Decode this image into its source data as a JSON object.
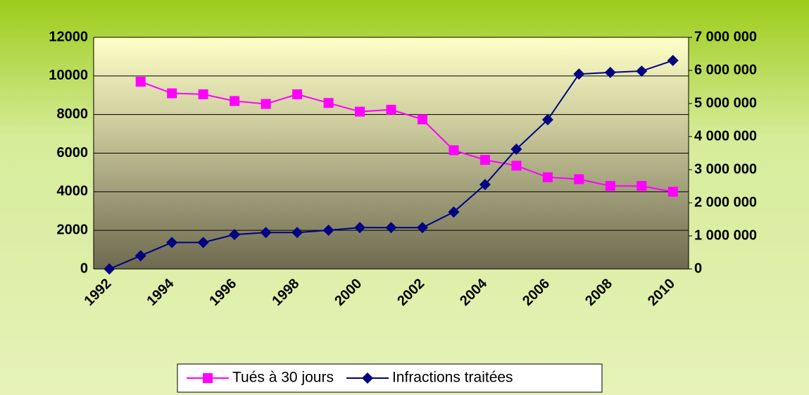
{
  "chart_data": {
    "type": "line",
    "categories": [
      "1992",
      null,
      "1994",
      null,
      "1996",
      null,
      "1998",
      null,
      "2000",
      null,
      "2002",
      null,
      "2004",
      null,
      "2006",
      null,
      "2008",
      null,
      "2010"
    ],
    "series": [
      {
        "name": "Tués à 30 jours",
        "color": "#ff00ff",
        "marker": "square",
        "values": [
          null,
          9700,
          9100,
          9050,
          8700,
          8550,
          9050,
          8600,
          8150,
          8250,
          7750,
          6150,
          5650,
          5350,
          4750,
          4650,
          4300,
          4300,
          4000
        ]
      },
      {
        "name": "Infractions traitées",
        "color": "#000080",
        "marker": "diamond",
        "axis": "y2",
        "values": [
          0,
          400000,
          800000,
          800000,
          1040000,
          1100000,
          1100000,
          1170000,
          1250000,
          1250000,
          1250000,
          1720000,
          2550000,
          3620000,
          4510000,
          5890000,
          5940000,
          5980000,
          6300000
        ]
      }
    ],
    "ylim": [
      0,
      12000
    ],
    "yticks": [
      0,
      2000,
      4000,
      6000,
      8000,
      10000,
      12000
    ],
    "y2lim": [
      0,
      7000000
    ],
    "y2ticks": [
      0,
      {
        "value": 1000000,
        "label": "1 000 000"
      },
      {
        "value": 2000000,
        "label": "2 000 000"
      },
      {
        "value": 3000000,
        "label": "3 000 000"
      },
      {
        "value": 4000000,
        "label": "4 000 000"
      },
      {
        "value": 5000000,
        "label": "5 000 000"
      },
      {
        "value": 6000000,
        "label": "6 000 000"
      },
      {
        "value": 7000000,
        "label": "7 000 000"
      }
    ],
    "grid": true,
    "legend": "bottom"
  }
}
